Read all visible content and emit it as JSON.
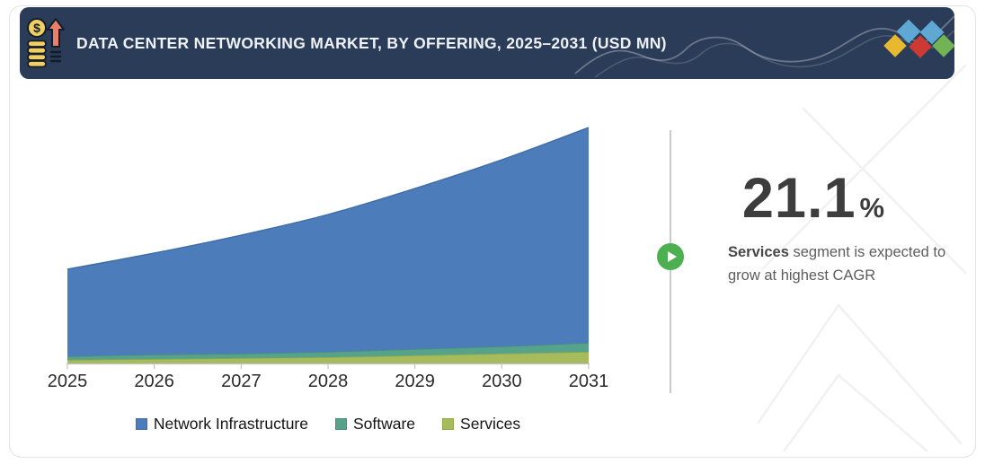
{
  "header": {
    "title": "DATA CENTER NETWORKING MARKET, BY OFFERING, 2025–2031 (USD MN)",
    "background": "#2b3c58",
    "icon": "coin-stack-growth-icon",
    "logo_diamond_colors": [
      "#e9b831",
      "#5fa8d3",
      "#cc3a33",
      "#5fa8d3",
      "#72b356"
    ]
  },
  "chart_data": {
    "type": "area",
    "stacked": true,
    "title": "DATA CENTER NETWORKING MARKET, BY OFFERING, 2025–2031 (USD MN)",
    "categories": [
      "2025",
      "2026",
      "2027",
      "2028",
      "2029",
      "2030",
      "2031"
    ],
    "series": [
      {
        "name": "Network Infrastructure",
        "color": "#4d7cba",
        "edge_color": "#3e6ca6",
        "values": [
          97,
          113,
          132,
          153,
          179,
          208,
          240
        ]
      },
      {
        "name": "Software",
        "color": "#57a28a",
        "edge_color": "#459077",
        "values": [
          4,
          5,
          5,
          6,
          7,
          8,
          10
        ]
      },
      {
        "name": "Services",
        "color": "#a5bb5e",
        "edge_color": "#90a848",
        "values": [
          4,
          5,
          6,
          7,
          9,
          11,
          13
        ]
      }
    ],
    "stack_order_bottom_to_top": [
      "Services",
      "Software",
      "Network Infrastructure"
    ],
    "xlabel": "",
    "ylabel": "",
    "units": "USD MN (y-axis unlabeled; values are estimated relative magnitudes read from the plot)",
    "legend_position": "bottom",
    "grid": false,
    "axis_color": "#c4c4c4"
  },
  "callout": {
    "value": "21.1",
    "percent_sign": "%",
    "description_bold": "Services",
    "description_text": " segment is expected to grow at highest CAGR",
    "play_button_color": "#4caf50"
  }
}
